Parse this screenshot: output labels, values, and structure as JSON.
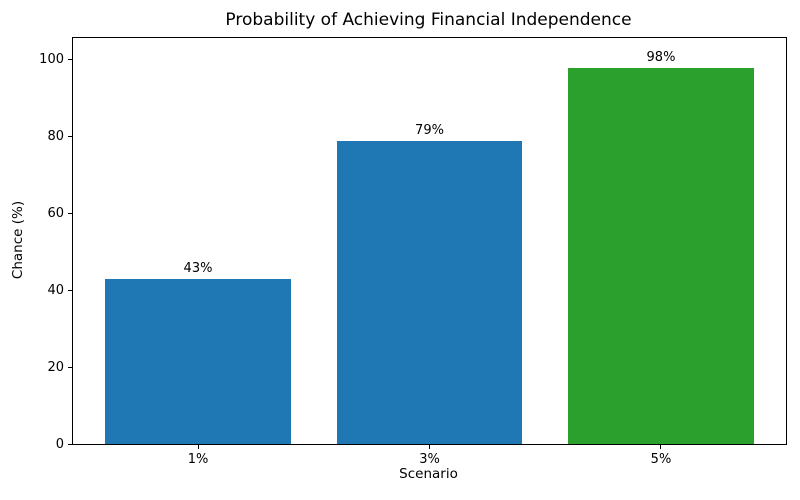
{
  "chart_data": {
    "type": "bar",
    "title": "Probability of Achieving Financial Independence",
    "xlabel": "Scenario",
    "ylabel": "Chance (%)",
    "categories": [
      "1%",
      "3%",
      "5%"
    ],
    "values": [
      43,
      79,
      98
    ],
    "bar_labels": [
      "43%",
      "79%",
      "98%"
    ],
    "bar_colors": [
      "#1f77b4",
      "#1f77b4",
      "#2ca02c"
    ],
    "yticks": [
      0,
      20,
      40,
      60,
      80,
      100
    ],
    "ylim": [
      0,
      105.7
    ],
    "xlim": [
      -0.54,
      2.54
    ],
    "grid": false,
    "legend_position": "none",
    "spine_color": "#000000",
    "text_color": "#000000",
    "background_color": "#ffffff"
  }
}
